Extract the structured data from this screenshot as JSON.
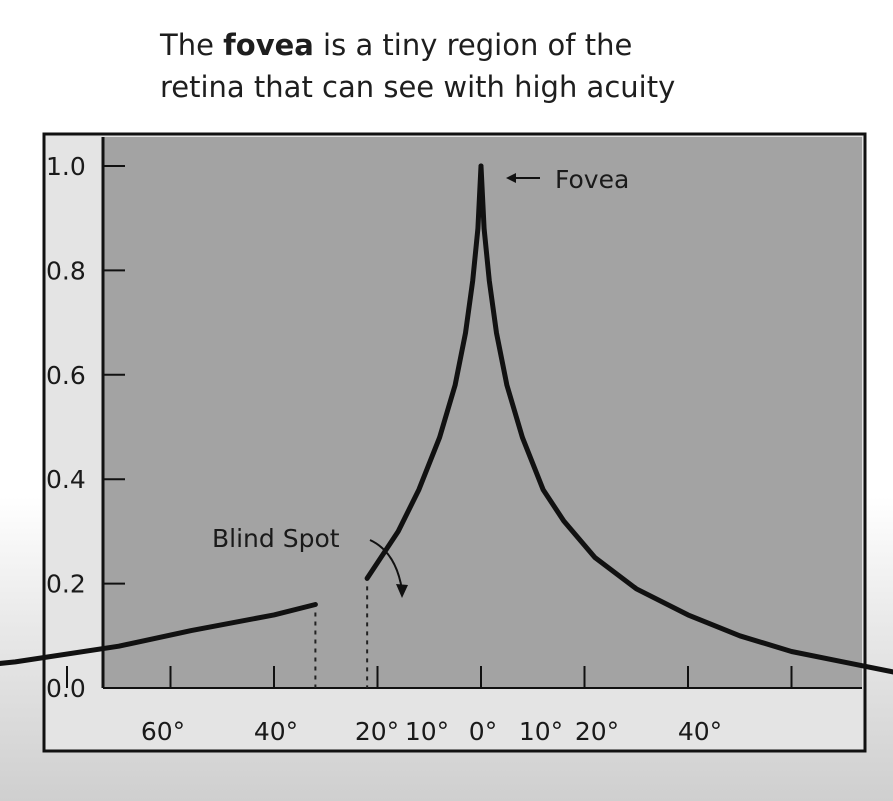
{
  "slide": {
    "title_line1_prefix": "The ",
    "title_line1_bold": "fovea",
    "title_line1_suffix": " is a tiny region of the",
    "title_line2": "retina that can see with high acuity"
  },
  "colors": {
    "plot_background": "#a3a3a3",
    "curve": "#111111",
    "axis_band": "#e4e4e4"
  },
  "chart_data": {
    "type": "line",
    "title": "",
    "xlabel": "",
    "ylabel": "",
    "xlim": [
      -70,
      50
    ],
    "ylim": [
      0,
      1.0
    ],
    "grid": false,
    "y_ticks": [
      "1.0",
      "0.8",
      "0.6",
      "0.4",
      "0.2",
      "0.0"
    ],
    "y_tick_values": [
      1.0,
      0.8,
      0.6,
      0.4,
      0.2,
      0.0
    ],
    "x_tick_labels": [
      {
        "label": "60°",
        "value": -60
      },
      {
        "label": "40°",
        "value": -40
      },
      {
        "label": "20°",
        "value": -20
      },
      {
        "label": "10°",
        "value": -10
      },
      {
        "label": "0°",
        "value": 0
      },
      {
        "label": "10°",
        "value": 10
      },
      {
        "label": "20°",
        "value": 20
      },
      {
        "label": "40°",
        "value": 40
      }
    ],
    "x_tick_marks": [
      -50,
      -40,
      -30,
      -20,
      -10,
      0,
      10,
      20,
      30,
      40
    ],
    "series": [
      {
        "segments": [
          {
            "x": [
              -64,
              -55,
              -45,
              -35,
              -28,
              -20,
              -16
            ],
            "y": [
              0.02,
              0.03,
              0.05,
              0.08,
              0.11,
              0.14,
              0.16
            ]
          },
          {
            "x": [
              -11,
              -8,
              -6,
              -4,
              -2.5,
              -1.5,
              -0.8,
              -0.3,
              0
            ],
            "y": [
              0.21,
              0.3,
              0.38,
              0.48,
              0.58,
              0.68,
              0.78,
              0.88,
              1.0
            ]
          },
          {
            "x": [
              0,
              0.3,
              0.8,
              1.5,
              2.5,
              4,
              6,
              8,
              11,
              15,
              20,
              25,
              30,
              35,
              40,
              45,
              51
            ],
            "y": [
              1.0,
              0.88,
              0.78,
              0.68,
              0.58,
              0.48,
              0.38,
              0.32,
              0.25,
              0.19,
              0.14,
              0.1,
              0.07,
              0.05,
              0.03,
              0.015,
              0.005
            ]
          }
        ]
      }
    ],
    "blind_spot_range": [
      -16,
      -11
    ],
    "annotations": [
      {
        "text": "Fovea",
        "x": 0,
        "y": 1.0
      },
      {
        "text": "Blind Spot",
        "x": -13.5,
        "y": 0.17
      }
    ]
  }
}
